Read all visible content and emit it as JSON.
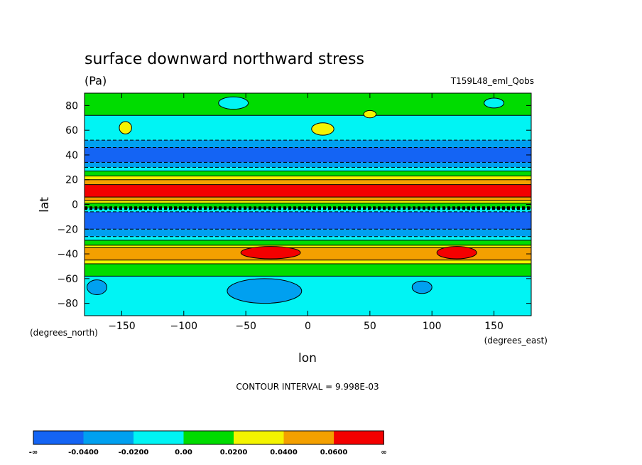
{
  "chart_data": {
    "type": "heatmap",
    "title": "surface downward northward stress",
    "units": "(Pa)",
    "run_label": "T159L48_eml_Qobs",
    "xlabel": "lon",
    "ylabel": "lat",
    "x_units_label": "(degrees_east)",
    "y_units_label": "(degrees_north)",
    "xlim": [
      -180,
      180
    ],
    "ylim": [
      -90,
      90
    ],
    "x_ticks": [
      -150,
      -100,
      -50,
      0,
      50,
      100,
      150
    ],
    "y_ticks": [
      80,
      60,
      40,
      20,
      0,
      -20,
      -40,
      -60,
      -80
    ],
    "contour_interval_label": "CONTOUR INTERVAL = 9.998E-03",
    "levels": [
      {
        "label": "-∞",
        "color": "#1464f4"
      },
      {
        "label": "-0.0400",
        "color": "#00a0f0"
      },
      {
        "label": "-0.0200",
        "color": "#00f4f4"
      },
      {
        "label": "0.00",
        "color": "#00dc00"
      },
      {
        "label": "0.0200",
        "color": "#f4f400"
      },
      {
        "label": "0.0400",
        "color": "#f4a000"
      },
      {
        "label": "0.0600",
        "color": "#f40000"
      },
      {
        "label": "∞",
        "color": ""
      }
    ],
    "zonal_bands": [
      {
        "lat_top": 90,
        "lat_bottom": 72,
        "color": "#00dc00"
      },
      {
        "lat_top": 72,
        "lat_bottom": 52,
        "color": "#00f4f4"
      },
      {
        "lat_top": 52,
        "lat_bottom": 46,
        "color": "#00a0f0"
      },
      {
        "lat_top": 46,
        "lat_bottom": 34,
        "color": "#1464f4"
      },
      {
        "lat_top": 34,
        "lat_bottom": 30,
        "color": "#00a0f0"
      },
      {
        "lat_top": 30,
        "lat_bottom": 27,
        "color": "#00f4f4"
      },
      {
        "lat_top": 27,
        "lat_bottom": 23,
        "color": "#00dc00"
      },
      {
        "lat_top": 23,
        "lat_bottom": 20,
        "color": "#f4f400"
      },
      {
        "lat_top": 20,
        "lat_bottom": 16,
        "color": "#f4a000"
      },
      {
        "lat_top": 16,
        "lat_bottom": 6,
        "color": "#f40000"
      },
      {
        "lat_top": 6,
        "lat_bottom": 3,
        "color": "#f4a000"
      },
      {
        "lat_top": 3,
        "lat_bottom": 1,
        "color": "#f4f400"
      },
      {
        "lat_top": 1,
        "lat_bottom": -3,
        "color": "#00dc00"
      },
      {
        "lat_top": -3,
        "lat_bottom": -6,
        "color": "#00f4f4"
      },
      {
        "lat_top": -6,
        "lat_bottom": -20,
        "color": "#1464f4"
      },
      {
        "lat_top": -20,
        "lat_bottom": -26,
        "color": "#00a0f0"
      },
      {
        "lat_top": -26,
        "lat_bottom": -29,
        "color": "#00f4f4"
      },
      {
        "lat_top": -29,
        "lat_bottom": -33,
        "color": "#00dc00"
      },
      {
        "lat_top": -33,
        "lat_bottom": -35,
        "color": "#f4f400"
      },
      {
        "lat_top": -35,
        "lat_bottom": -45,
        "color": "#f4a000"
      },
      {
        "lat_top": -45,
        "lat_bottom": -48,
        "color": "#f4f400"
      },
      {
        "lat_top": -48,
        "lat_bottom": -58,
        "color": "#00dc00"
      },
      {
        "lat_top": -58,
        "lat_bottom": -90,
        "color": "#00f4f4"
      }
    ],
    "features": [
      {
        "kind": "ellipse",
        "lon": -147,
        "lat": 62,
        "rlon": 5,
        "rlat": 5,
        "color": "#f4f400"
      },
      {
        "kind": "ellipse",
        "lon": 12,
        "lat": 61,
        "rlon": 9,
        "rlat": 5,
        "color": "#f4f400"
      },
      {
        "kind": "ellipse",
        "lon": 50,
        "lat": 73,
        "rlon": 5,
        "rlat": 3,
        "color": "#f4f400"
      },
      {
        "kind": "ellipse",
        "lon": -30,
        "lat": -39,
        "rlon": 24,
        "rlat": 5,
        "color": "#f40000"
      },
      {
        "kind": "ellipse",
        "lon": 120,
        "lat": -39,
        "rlon": 16,
        "rlat": 5,
        "color": "#f40000"
      },
      {
        "kind": "ellipse",
        "lon": -35,
        "lat": -70,
        "rlon": 30,
        "rlat": 10,
        "color": "#00a0f0"
      },
      {
        "kind": "ellipse",
        "lon": -170,
        "lat": -67,
        "rlon": 8,
        "rlat": 6,
        "color": "#00a0f0"
      },
      {
        "kind": "ellipse",
        "lon": 92,
        "lat": -67,
        "rlon": 8,
        "rlat": 5,
        "color": "#00a0f0"
      },
      {
        "kind": "ellipse",
        "lon": -60,
        "lat": 82,
        "rlon": 12,
        "rlat": 5,
        "color": "#00f4f4"
      },
      {
        "kind": "ellipse",
        "lon": 150,
        "lat": 82,
        "rlon": 8,
        "rlat": 4,
        "color": "#00f4f4"
      }
    ]
  }
}
